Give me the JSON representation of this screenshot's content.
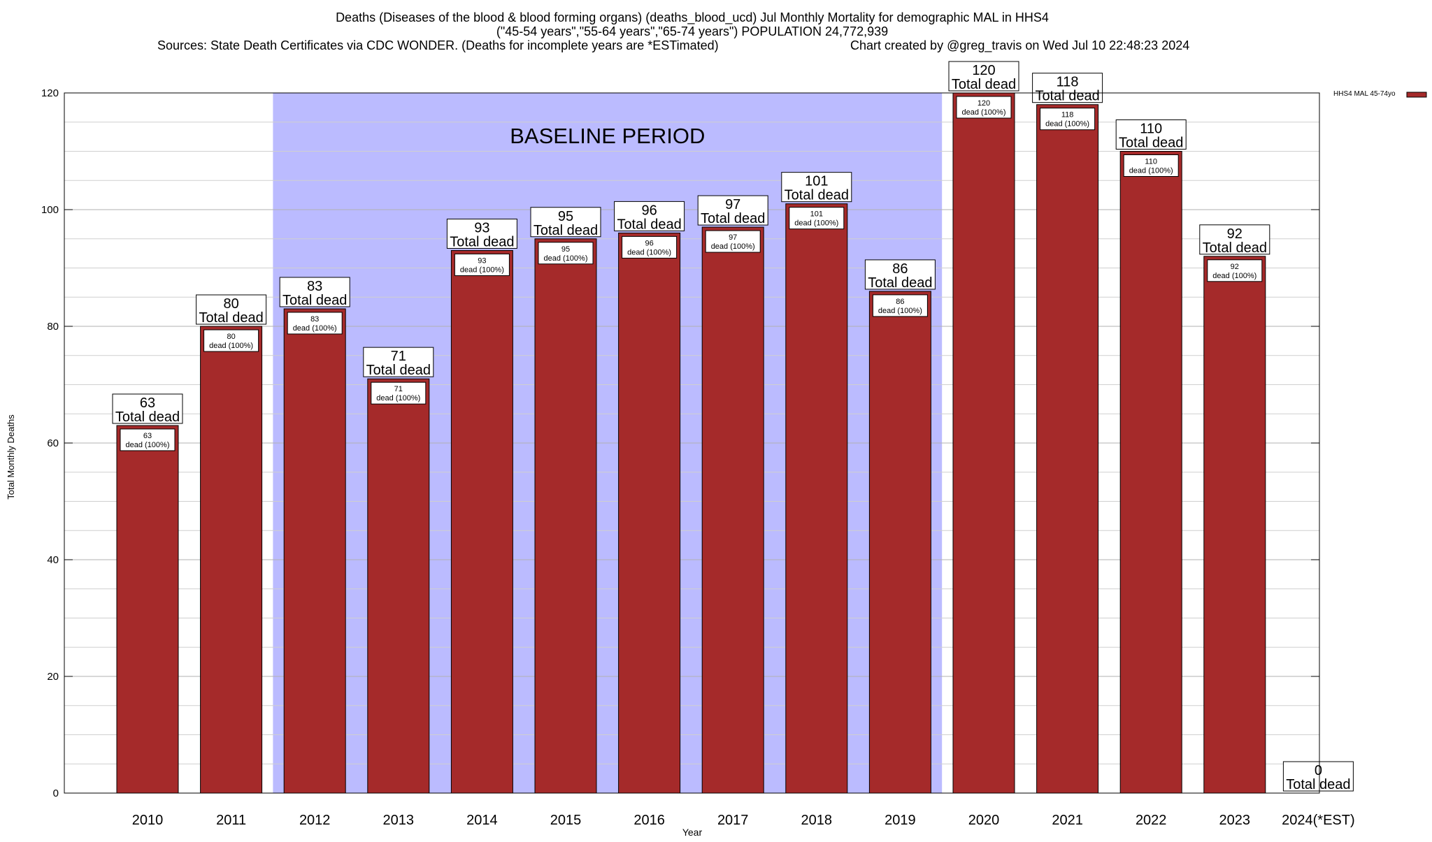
{
  "chart_data": {
    "type": "bar",
    "title_lines": [
      "Deaths (Diseases of the blood & blood forming organs) (deaths_blood_ucd) Jul Monthly Mortality for demographic MAL in HHS4",
      "(\"45-54 years\",\"55-64 years\",\"65-74 years\") POPULATION 24,772,939",
      "Sources: State Death Certificates via CDC WONDER. (Deaths for incomplete years are *ESTimated)"
    ],
    "credit": "Chart created by @greg_travis on Wed Jul 10 22:48:23 2024",
    "xlabel": "Year",
    "ylabel": "Total Monthly Deaths",
    "ylim": [
      0,
      120
    ],
    "yticks": [
      0,
      20,
      40,
      60,
      80,
      100,
      120
    ],
    "categories": [
      "2010",
      "2011",
      "2012",
      "2013",
      "2014",
      "2015",
      "2016",
      "2017",
      "2018",
      "2019",
      "2020",
      "2021",
      "2022",
      "2023",
      "2024(*EST)"
    ],
    "series": [
      {
        "name": "HHS4 MAL 45-74yo",
        "color": "#a52a2a",
        "values": [
          63,
          80,
          83,
          71,
          93,
          95,
          96,
          97,
          101,
          86,
          120,
          118,
          110,
          92,
          0
        ]
      }
    ],
    "total_label": "Total dead",
    "inner_label": "dead (100%)",
    "baseline": {
      "label": "BASELINE PERIOD",
      "from": "2012",
      "to": "2019",
      "color": "#bbbbff"
    },
    "legend_position": "top-right",
    "grid": true
  }
}
